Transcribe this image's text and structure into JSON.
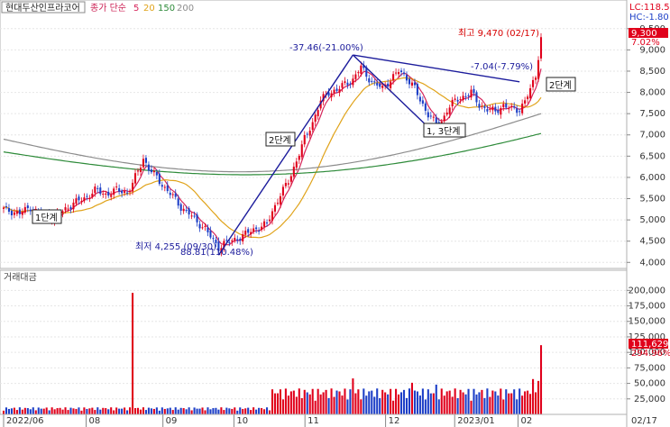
{
  "header": {
    "stock_name": "현대두산인프라코어",
    "ma_label": "종가 단순",
    "ma_periods": [
      "5",
      "20",
      "150",
      "200"
    ],
    "lc": "LC:118.57",
    "hc": "HC:-1.80"
  },
  "price_panel": {
    "current_price_tag": "9,300",
    "pct_tag": "7.02%",
    "y_ticks": [
      "9,500",
      "9,000",
      "8,500",
      "8,000",
      "7,500",
      "7,000",
      "6,500",
      "6,000",
      "5,500",
      "5,000",
      "4,500",
      "4,000"
    ]
  },
  "volume_panel": {
    "title": "거래대금",
    "current_value_tag": "111,629",
    "pct_tag": "294.96%",
    "y_ticks": [
      "200,000",
      "175,000",
      "150,000",
      "125,000",
      "100,000",
      "75,000",
      "50,000",
      "25,000"
    ]
  },
  "x_axis": {
    "labels": [
      "2022/06",
      "08",
      "09",
      "10",
      "11",
      "12",
      "2023/01",
      "02"
    ],
    "end_label": "02/17"
  },
  "annotations": {
    "high": "최고 9,470 (02/17)",
    "low": "최저 4,255 (09/30)",
    "pct1": "-37.46(-21.00%)",
    "pct2": "88.81(110.48%)",
    "pct3": "-7.04(-7.79%)",
    "stage1": "1단계",
    "stage2a": "2단계",
    "stage13": "1, 3단계",
    "stage2b": "2단계"
  },
  "colors": {
    "up": "#e0001b",
    "down": "#1d3fc7",
    "ma5": "#d6245a",
    "ma20": "#e0a31a",
    "ma150": "#2e8b3a",
    "ma200": "#8c8c8c",
    "trend": "#1c1c9c",
    "tag_red": "#e0001b"
  },
  "chart_data": {
    "type": "candlestick",
    "price_range": [
      3900,
      9750
    ],
    "volume_range": [
      0,
      215000
    ],
    "grid": true,
    "ma_series": [
      {
        "name": "5",
        "period": 5
      },
      {
        "name": "20",
        "period": 20
      },
      {
        "name": "150",
        "period": 150
      },
      {
        "name": "200",
        "period": 200
      }
    ],
    "price_anchors": [
      [
        0,
        5250
      ],
      [
        6,
        5150
      ],
      [
        10,
        5300
      ],
      [
        14,
        5100
      ],
      [
        18,
        5050
      ],
      [
        22,
        5200
      ],
      [
        26,
        5400
      ],
      [
        30,
        5500
      ],
      [
        34,
        5700
      ],
      [
        38,
        5600
      ],
      [
        42,
        5700
      ],
      [
        46,
        5650
      ],
      [
        48,
        5850
      ],
      [
        50,
        6150
      ],
      [
        52,
        6450
      ],
      [
        54,
        6200
      ],
      [
        57,
        6000
      ],
      [
        60,
        5750
      ],
      [
        63,
        5550
      ],
      [
        66,
        5300
      ],
      [
        69,
        5150
      ],
      [
        72,
        4950
      ],
      [
        75,
        4800
      ],
      [
        78,
        4500
      ],
      [
        80,
        4350
      ],
      [
        82,
        4450
      ],
      [
        85,
        4500
      ],
      [
        88,
        4600
      ],
      [
        91,
        4700
      ],
      [
        94,
        4800
      ],
      [
        96,
        4850
      ],
      [
        98,
        4900
      ],
      [
        100,
        5200
      ],
      [
        103,
        5600
      ],
      [
        106,
        5900
      ],
      [
        109,
        6400
      ],
      [
        112,
        6900
      ],
      [
        115,
        7300
      ],
      [
        118,
        7800
      ],
      [
        121,
        8000
      ],
      [
        124,
        8050
      ],
      [
        127,
        8200
      ],
      [
        130,
        8300
      ],
      [
        133,
        8600
      ],
      [
        135,
        8400
      ],
      [
        138,
        8200
      ],
      [
        141,
        8100
      ],
      [
        144,
        8300
      ],
      [
        147,
        8500
      ],
      [
        150,
        8350
      ],
      [
        153,
        8100
      ],
      [
        155,
        7800
      ],
      [
        158,
        7500
      ],
      [
        161,
        7250
      ],
      [
        163,
        7300
      ],
      [
        165,
        7600
      ],
      [
        168,
        7800
      ],
      [
        171,
        7900
      ],
      [
        174,
        8000
      ],
      [
        177,
        7700
      ],
      [
        180,
        7600
      ],
      [
        183,
        7550
      ],
      [
        186,
        7700
      ],
      [
        189,
        7600
      ],
      [
        192,
        7600
      ],
      [
        194,
        7800
      ],
      [
        196,
        8050
      ],
      [
        198,
        8400
      ],
      [
        200,
        9300
      ]
    ],
    "volume_days": 200,
    "volume_spike_days": [
      [
        48,
        196000
      ],
      [
        130,
        58000
      ],
      [
        152,
        51000
      ],
      [
        161,
        48000
      ],
      [
        196,
        33000
      ],
      [
        200,
        111629
      ]
    ],
    "volume": {
      "current": 111629
    }
  }
}
